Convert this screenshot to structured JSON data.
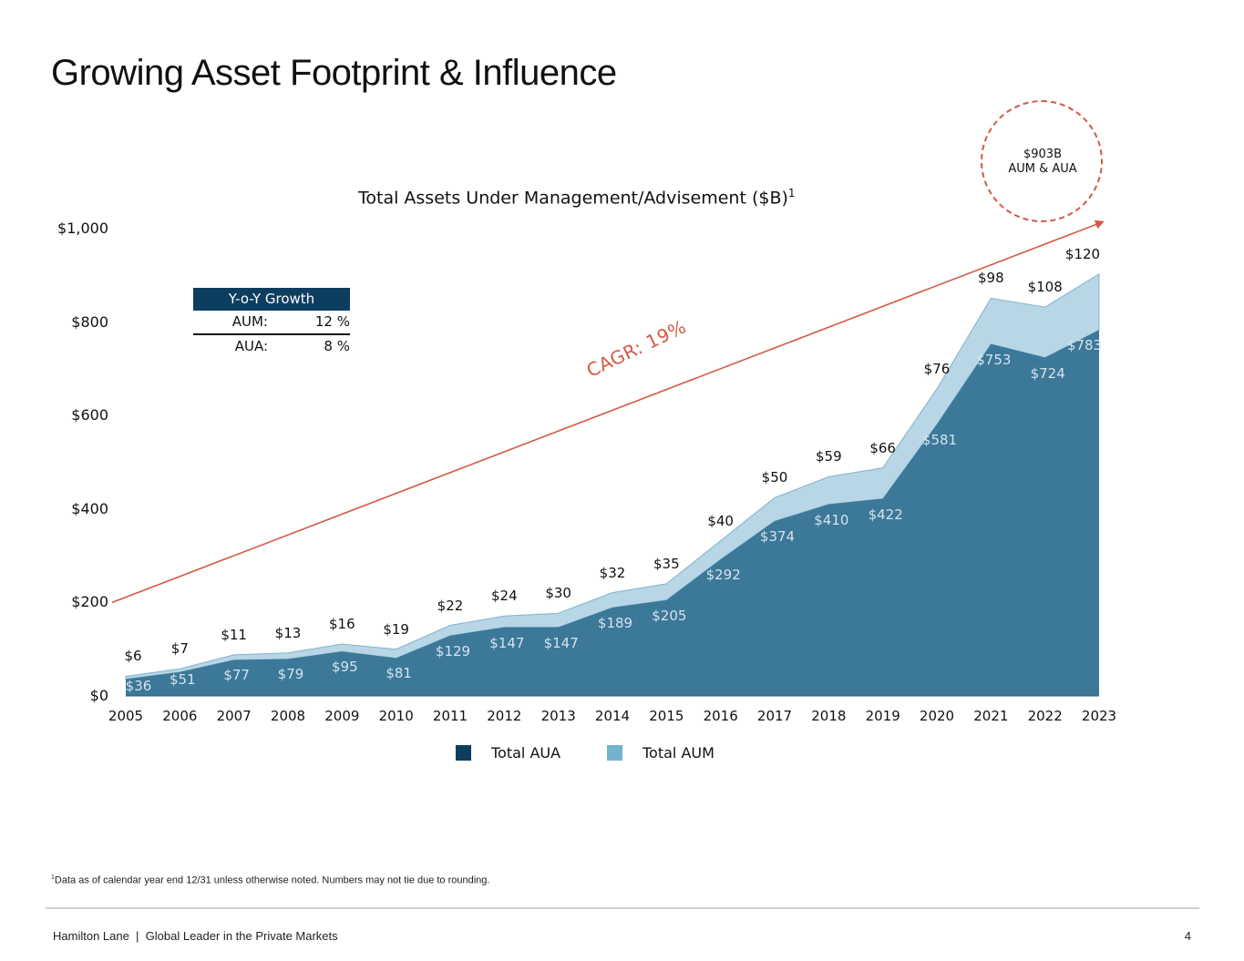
{
  "page": {
    "title": "Growing Asset Footprint & Influence",
    "footnote_marker": "1",
    "footnote": "Data as of calendar year end 12/31 unless otherwise noted. Numbers may not tie due to rounding.",
    "footer": "Hamilton Lane  |  Global Leader in the Private Markets",
    "page_number": "4"
  },
  "growth_table": {
    "header": "Y-o-Y Growth",
    "rows": [
      {
        "label": "AUM:",
        "value": "12 %"
      },
      {
        "label": "AUA:",
        "value": "8 %"
      }
    ]
  },
  "badge": {
    "line1": "$903B",
    "line2": "AUM & AUA"
  },
  "cagr_label": "CAGR: 19%",
  "colors": {
    "aua": "#3c7898",
    "aum": "#b8d6e5",
    "aum_line": "#7fb4cf",
    "legend_aua": "#0d3e60",
    "legend_aum": "#74b3cf",
    "cagr": "#d35a45"
  },
  "chart_data": {
    "type": "area",
    "title": "Total Assets Under Management/Advisement ($B)",
    "title_superscript": "1",
    "categories": [
      "2005",
      "2006",
      "2007",
      "2008",
      "2009",
      "2010",
      "2011",
      "2012",
      "2013",
      "2014",
      "2015",
      "2016",
      "2017",
      "2018",
      "2019",
      "2020",
      "2021",
      "2022",
      "2023"
    ],
    "series": [
      {
        "name": "Total AUA",
        "values": [
          36,
          51,
          77,
          79,
          95,
          81,
          129,
          147,
          147,
          189,
          205,
          292,
          374,
          410,
          422,
          581,
          753,
          724,
          783
        ],
        "labels": [
          "$36",
          "$51",
          "$77",
          "$79",
          "$95",
          "$81",
          "$129",
          "$147",
          "$147",
          "$189",
          "$205",
          "$292",
          "$374",
          "$410",
          "$422",
          "$581",
          "$753",
          "$724",
          "$783"
        ]
      },
      {
        "name": "Total AUM",
        "values": [
          6,
          7,
          11,
          13,
          16,
          19,
          22,
          24,
          30,
          32,
          35,
          40,
          50,
          59,
          66,
          76,
          98,
          108,
          120
        ],
        "labels": [
          "$6",
          "$7",
          "$11",
          "$13",
          "$16",
          "$19",
          "$22",
          "$24",
          "$30",
          "$32",
          "$35",
          "$40",
          "$50",
          "$59",
          "$66",
          "$76",
          "$98",
          "$108",
          "$120"
        ]
      }
    ],
    "stacked": true,
    "ylim": [
      0,
      1000
    ],
    "yticks": [
      "$0",
      "$200",
      "$400",
      "$600",
      "$800",
      "$1,000"
    ],
    "ytick_values": [
      0,
      200,
      400,
      600,
      800,
      1000
    ],
    "trend": {
      "label": "CAGR: 19%",
      "start_value": 200,
      "end_value": 1030
    },
    "legend": [
      "Total AUA",
      "Total AUM"
    ],
    "legend_position": "bottom-center"
  }
}
